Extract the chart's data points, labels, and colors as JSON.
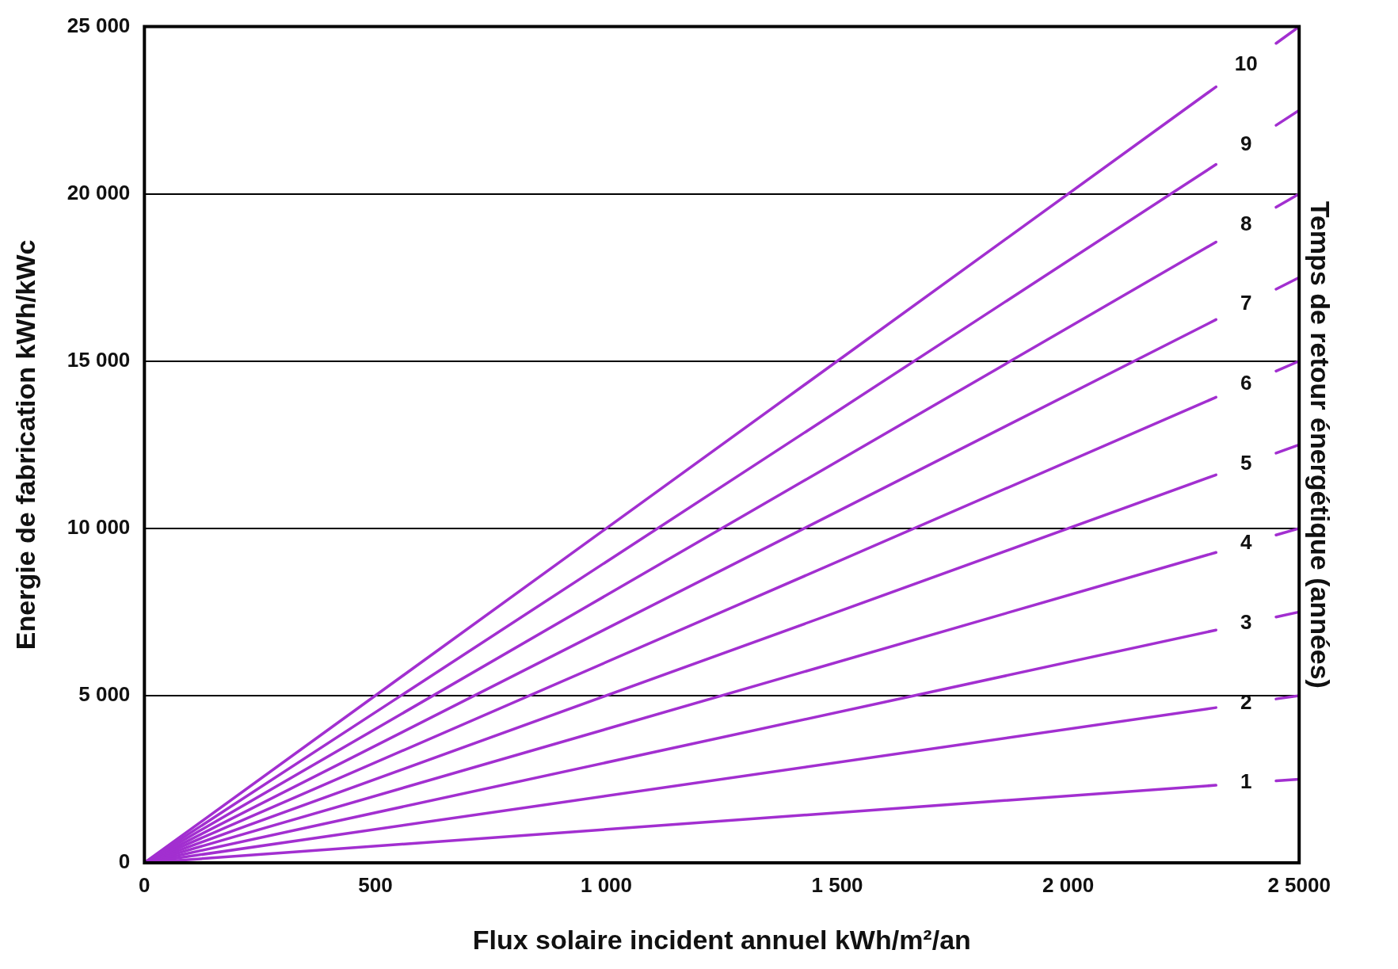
{
  "chart_data": {
    "type": "line",
    "xlabel": "Flux solaire incident annuel kWh/m²/an",
    "ylabel": "Energie de fabrication kWh/kWc",
    "y2label": "Temps de retour énergétique (années)",
    "xlim": [
      0,
      2500
    ],
    "ylim": [
      0,
      25000
    ],
    "xticks": [
      0,
      500,
      {
        "value": 1000,
        "label": "1 000"
      },
      {
        "value": 1500,
        "label": "1 500"
      },
      {
        "value": 2000,
        "label": "2 000"
      },
      {
        "value": 2500,
        "label": "2 5000"
      }
    ],
    "yticks": [
      0,
      {
        "value": 5000,
        "label": "5 000"
      },
      {
        "value": 10000,
        "label": "10 000"
      },
      {
        "value": 15000,
        "label": "15 000"
      },
      {
        "value": 20000,
        "label": "20 000"
      },
      {
        "value": 25000,
        "label": "25 000"
      }
    ],
    "grid": "y",
    "legend": false,
    "marker": "none",
    "line_style": "solid",
    "series": [
      {
        "name": "1",
        "color": "#a22fd0",
        "x": [
          0,
          2320,
          2385,
          2450,
          2500
        ],
        "values": [
          0,
          2320,
          null,
          2450,
          2500
        ]
      },
      {
        "name": "2",
        "color": "#a22fd0",
        "x": [
          0,
          2320,
          2385,
          2450,
          2500
        ],
        "values": [
          0,
          4640,
          null,
          4900,
          5000
        ]
      },
      {
        "name": "3",
        "color": "#a22fd0",
        "x": [
          0,
          2320,
          2385,
          2450,
          2500
        ],
        "values": [
          0,
          6960,
          null,
          7350,
          7500
        ]
      },
      {
        "name": "4",
        "color": "#a22fd0",
        "x": [
          0,
          2320,
          2385,
          2450,
          2500
        ],
        "values": [
          0,
          9280,
          null,
          9800,
          10000
        ]
      },
      {
        "name": "5",
        "color": "#a22fd0",
        "x": [
          0,
          2320,
          2385,
          2450,
          2500
        ],
        "values": [
          0,
          11600,
          null,
          12250,
          12500
        ]
      },
      {
        "name": "6",
        "color": "#a22fd0",
        "x": [
          0,
          2320,
          2385,
          2450,
          2500
        ],
        "values": [
          0,
          13920,
          null,
          14700,
          15000
        ]
      },
      {
        "name": "7",
        "color": "#a22fd0",
        "x": [
          0,
          2320,
          2385,
          2450,
          2500
        ],
        "values": [
          0,
          16240,
          null,
          17150,
          17500
        ]
      },
      {
        "name": "8",
        "color": "#a22fd0",
        "x": [
          0,
          2320,
          2385,
          2450,
          2500
        ],
        "values": [
          0,
          18560,
          null,
          19600,
          20000
        ]
      },
      {
        "name": "9",
        "color": "#a22fd0",
        "x": [
          0,
          2320,
          2385,
          2450,
          2500
        ],
        "values": [
          0,
          20880,
          null,
          22050,
          22500
        ]
      },
      {
        "name": "10",
        "color": "#a22fd0",
        "x": [
          0,
          2320,
          2385,
          2450,
          2500
        ],
        "values": [
          0,
          23200,
          null,
          24500,
          25000
        ]
      }
    ]
  }
}
